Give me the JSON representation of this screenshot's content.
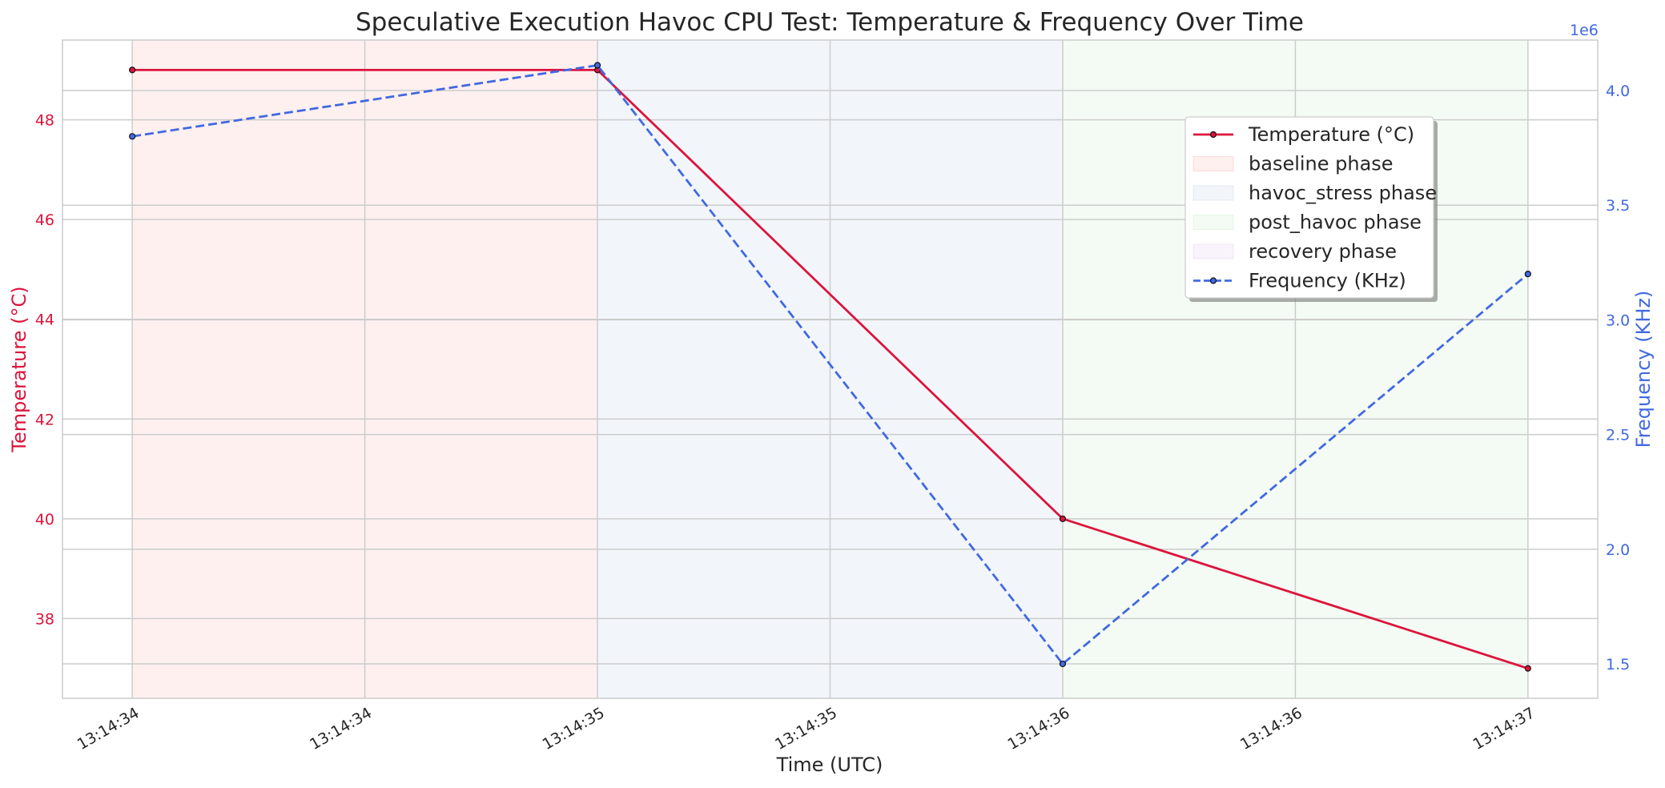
{
  "chart_data": {
    "type": "line",
    "title": "Speculative Execution Havoc CPU Test: Temperature & Frequency Over Time",
    "xlabel": "Time (UTC)",
    "x_tick_labels": [
      "13:14:34",
      "13:14:34",
      "13:14:35",
      "13:14:35",
      "13:14:36",
      "13:14:36",
      "13:14:37"
    ],
    "x_points": [
      0,
      1,
      2,
      3
    ],
    "x_range": [
      -0.15,
      3.15
    ],
    "y_left": {
      "label": "Temperature (°C)",
      "range": [
        36.4,
        49.6
      ],
      "ticks": [
        38,
        40,
        42,
        44,
        46,
        48
      ],
      "color": "#dc143c"
    },
    "y_right": {
      "label": "Frequency (KHz)",
      "range": [
        1350000,
        4220000
      ],
      "ticks": [
        1500000,
        2000000,
        2500000,
        3000000,
        3500000,
        4000000
      ],
      "tick_labels": [
        "1.5",
        "2.0",
        "2.5",
        "3.0",
        "3.5",
        "4.0"
      ],
      "offset_text": "1e6",
      "color": "#4169e1"
    },
    "series": [
      {
        "name": "Temperature (°C)",
        "axis": "left",
        "values": [
          49,
          49,
          40,
          37
        ],
        "color": "#dc143c",
        "style": "solid"
      },
      {
        "name": "Frequency (KHz)",
        "axis": "right",
        "values": [
          3800000,
          4110000,
          1500000,
          3200000
        ],
        "color": "#4169e1",
        "style": "dashed"
      }
    ],
    "phases": [
      {
        "name": "baseline phase",
        "start": 0,
        "end": 1,
        "color": "#ff9999"
      },
      {
        "name": "havoc_stress phase",
        "start": 1,
        "end": 2,
        "color": "#a8c4e0"
      },
      {
        "name": "post_havoc phase",
        "start": 2,
        "end": 3,
        "color": "#b3e6b3"
      },
      {
        "name": "recovery phase",
        "start": null,
        "end": null,
        "color": "#d8b4e2"
      }
    ],
    "legend": {
      "placement": "upper-right",
      "entries": [
        "Temperature (°C)",
        "baseline phase",
        "havoc_stress phase",
        "post_havoc phase",
        "recovery phase",
        "Frequency (KHz)"
      ]
    },
    "grid": true
  }
}
